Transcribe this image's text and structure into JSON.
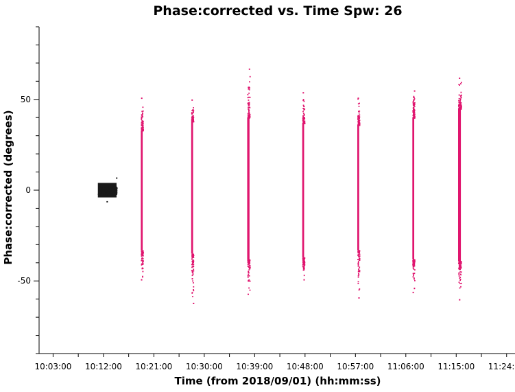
{
  "chart_data": {
    "type": "scatter",
    "title": "Phase:corrected vs. Time Spw: 26",
    "xlabel": "Time (from 2018/09/01) (hh:mm:ss)",
    "ylabel": "Phase:corrected (degrees)",
    "grid": false,
    "legend": "none",
    "xlim": [
      "10:00:30",
      "11:25:30"
    ],
    "ylim": [
      -90,
      90
    ],
    "x_ticks": [
      "10:03:00",
      "10:12:00",
      "10:21:00",
      "10:30:00",
      "10:39:00",
      "10:48:00",
      "10:57:00",
      "11:06:00",
      "11:15:00",
      "11:24:00"
    ],
    "y_ticks": [
      -50,
      0,
      50
    ],
    "series": [
      {
        "color": "#1a1a1a",
        "scans": [
          {
            "start": "10:11:00",
            "end": "10:14:20",
            "median": 0,
            "core_low": -4,
            "core_high": 4,
            "min": -6,
            "max": 7
          }
        ]
      },
      {
        "color": "#e0156e",
        "scans": [
          {
            "start": "10:18:40",
            "end": "10:19:00",
            "median": 0,
            "core_low": -33,
            "core_high": 33,
            "min": -49,
            "max": 51
          },
          {
            "start": "10:27:40",
            "end": "10:28:00",
            "median": 0,
            "core_low": -35,
            "core_high": 38,
            "min": -62,
            "max": 50
          },
          {
            "start": "10:37:40",
            "end": "10:38:05",
            "median": 0,
            "core_low": -38,
            "core_high": 40,
            "min": -57,
            "max": 67
          },
          {
            "start": "10:47:30",
            "end": "10:47:50",
            "median": 0,
            "core_low": -37,
            "core_high": 37,
            "min": -49,
            "max": 54
          },
          {
            "start": "10:57:20",
            "end": "10:57:40",
            "median": 0,
            "core_low": -33,
            "core_high": 36,
            "min": -59,
            "max": 51
          },
          {
            "start": "11:07:10",
            "end": "11:07:30",
            "median": 0,
            "core_low": -38,
            "core_high": 40,
            "min": -56,
            "max": 55
          },
          {
            "start": "11:15:20",
            "end": "11:15:50",
            "median": 0,
            "core_low": -39,
            "core_high": 45,
            "min": -60,
            "max": 62
          }
        ]
      }
    ]
  }
}
